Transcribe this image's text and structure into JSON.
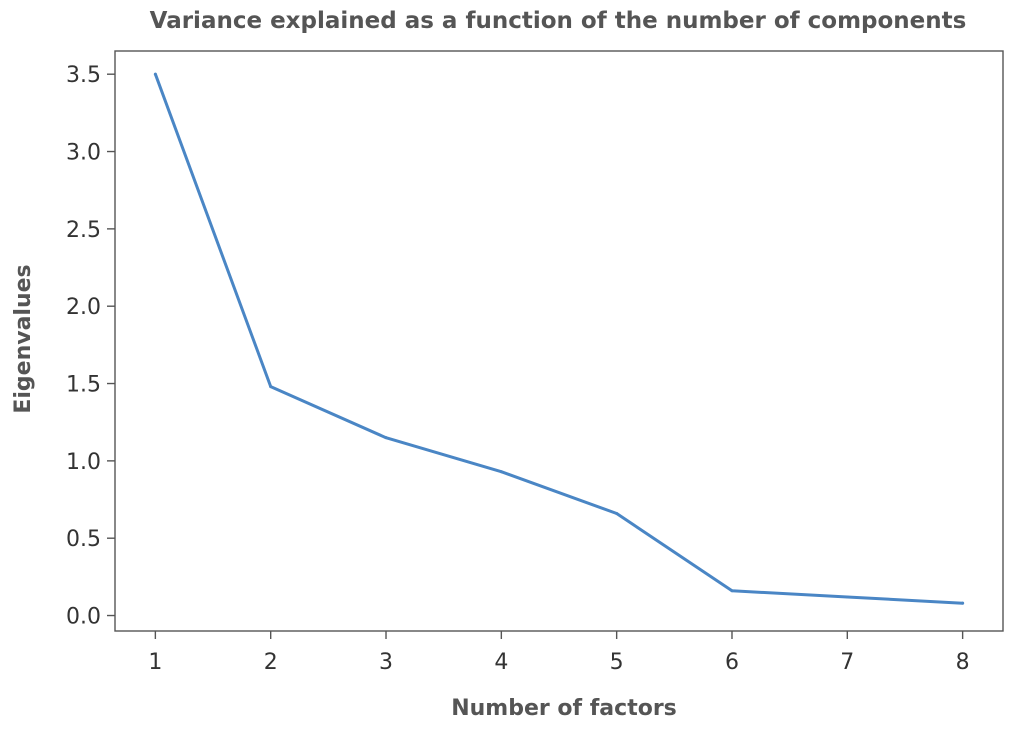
{
  "chart_data": {
    "type": "line",
    "title": "Variance explained as a function of the number of components",
    "xlabel": "Number of factors",
    "ylabel": "Eigenvalues",
    "x": [
      1,
      2,
      3,
      4,
      5,
      6,
      7,
      8
    ],
    "series": [
      {
        "values": [
          3.5,
          1.48,
          1.15,
          0.93,
          0.66,
          0.16,
          0.12,
          0.08
        ],
        "color": "#4a86c5"
      }
    ],
    "xticks": [
      1,
      2,
      3,
      4,
      5,
      6,
      7,
      8
    ],
    "xtick_labels": [
      "1",
      "2",
      "3",
      "4",
      "5",
      "6",
      "7",
      "8"
    ],
    "yticks": [
      0.0,
      0.5,
      1.0,
      1.5,
      2.0,
      2.5,
      3.0,
      3.5
    ],
    "ytick_labels": [
      "0.0",
      "0.5",
      "1.0",
      "1.5",
      "2.0",
      "2.5",
      "3.0",
      "3.5"
    ],
    "xlim": [
      0.65,
      8.35
    ],
    "ylim": [
      -0.1,
      3.65
    ],
    "grid": false
  }
}
